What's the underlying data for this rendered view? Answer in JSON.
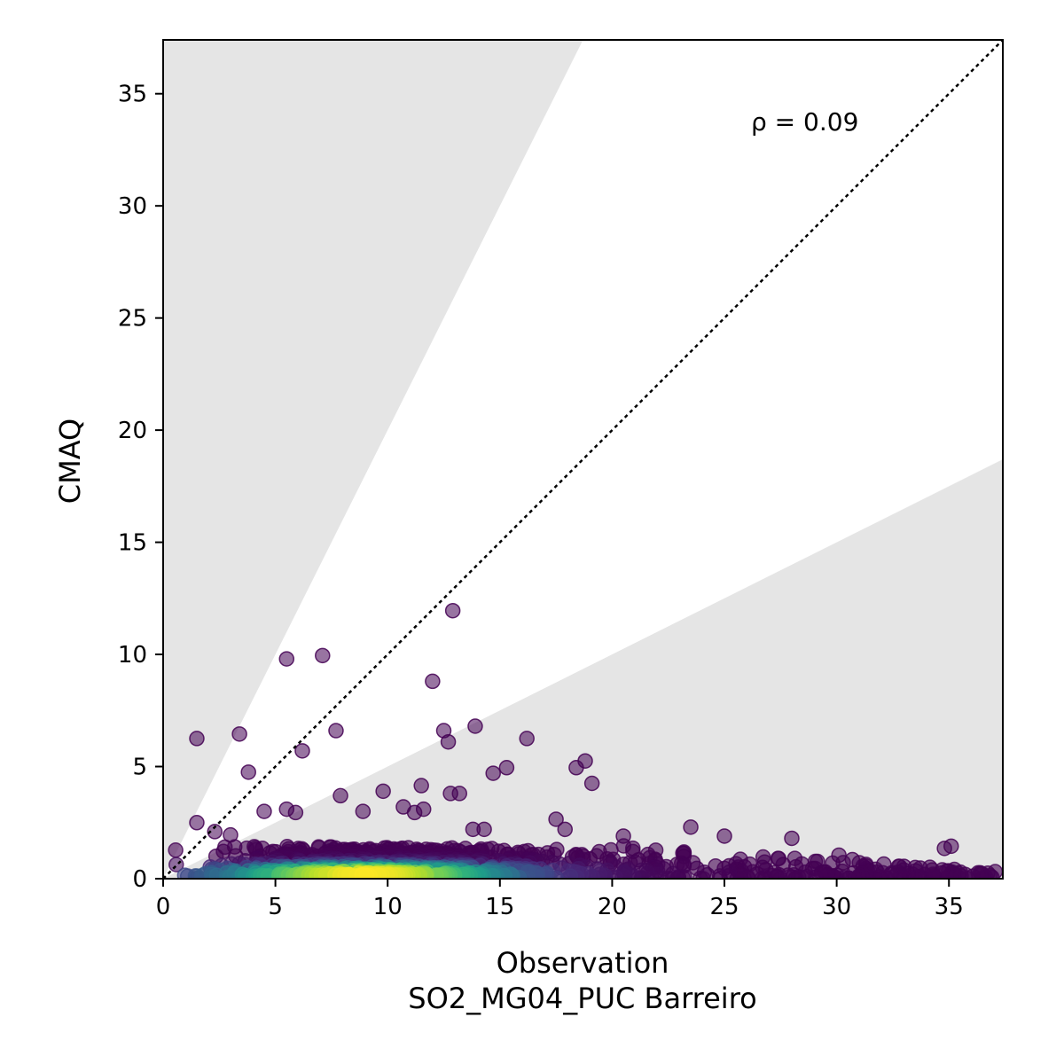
{
  "chart_data": {
    "type": "scatter",
    "title": "",
    "xlabel": "Observation",
    "xlabel_sub": "SO2_MG04_PUC Barreiro",
    "ylabel": "CMAQ",
    "xlim": [
      0,
      37.4
    ],
    "ylim": [
      0,
      37.4
    ],
    "xticks": [
      0,
      5,
      10,
      15,
      20,
      25,
      30,
      35
    ],
    "yticks": [
      0,
      5,
      10,
      15,
      20,
      25,
      30,
      35
    ],
    "grid": false,
    "legend": "none",
    "annotation": "ρ = 0.09",
    "reference_line": "1:1",
    "shaded_bounds": {
      "upper_factor": 2,
      "lower_factor": 0.5,
      "color": "#e5e5e5"
    },
    "colormap": "viridis",
    "outlier_points": [
      [
        1.5,
        6.25
      ],
      [
        3.4,
        6.45
      ],
      [
        3.8,
        4.75
      ],
      [
        5.5,
        9.8
      ],
      [
        6.2,
        5.7
      ],
      [
        7.1,
        9.95
      ],
      [
        7.7,
        6.6
      ],
      [
        7.9,
        3.7
      ],
      [
        9.8,
        3.9
      ],
      [
        12.0,
        8.8
      ],
      [
        12.5,
        6.6
      ],
      [
        12.7,
        6.1
      ],
      [
        12.8,
        3.8
      ],
      [
        12.9,
        11.95
      ],
      [
        13.2,
        3.8
      ],
      [
        13.9,
        6.8
      ],
      [
        14.7,
        4.7
      ],
      [
        15.3,
        4.95
      ],
      [
        16.2,
        6.25
      ],
      [
        18.4,
        4.95
      ],
      [
        18.8,
        5.25
      ],
      [
        19.1,
        4.25
      ],
      [
        11.5,
        4.15
      ],
      [
        4.5,
        3.0
      ],
      [
        5.5,
        3.1
      ],
      [
        5.9,
        2.95
      ],
      [
        8.9,
        3.0
      ],
      [
        10.7,
        3.2
      ],
      [
        11.2,
        2.95
      ],
      [
        11.6,
        3.1
      ],
      [
        13.8,
        2.2
      ],
      [
        14.3,
        2.2
      ],
      [
        17.5,
        2.65
      ],
      [
        17.9,
        2.2
      ],
      [
        20.5,
        1.9
      ],
      [
        23.5,
        2.3
      ],
      [
        25.0,
        1.9
      ],
      [
        28.0,
        1.8
      ],
      [
        1.5,
        2.5
      ],
      [
        2.3,
        2.1
      ],
      [
        3.0,
        1.95
      ],
      [
        30.1,
        1.05
      ],
      [
        30.7,
        0.85
      ],
      [
        34.8,
        1.35
      ],
      [
        35.1,
        1.45
      ],
      [
        32.1,
        0.65
      ],
      [
        33.0,
        0.55
      ]
    ],
    "dense_band": {
      "x_range": [
        0,
        37.4
      ],
      "y_range": [
        0,
        1.6
      ],
      "peak_x": 9,
      "peak_y": 0.15
    }
  }
}
